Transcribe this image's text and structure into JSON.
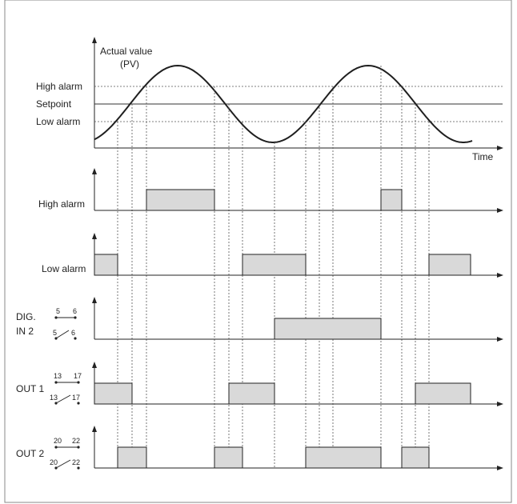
{
  "labels": {
    "actual_value": "Actual value",
    "pv": "(PV)",
    "high_alarm": "High alarm",
    "setpoint": "Setpoint",
    "low_alarm": "Low alarm",
    "time": "Time",
    "row_high_alarm": "High alarm",
    "row_low_alarm": "Low alarm",
    "dig": "DIG.",
    "in2": "IN 2",
    "out1": "OUT 1",
    "out2": "OUT 2"
  },
  "terminals": {
    "dig": [
      "5",
      "6"
    ],
    "out1": [
      "13",
      "17"
    ],
    "out2": [
      "20",
      "22"
    ]
  },
  "colors": {
    "pulse_fill": "#d9d9d9",
    "line": "#222222"
  }
}
